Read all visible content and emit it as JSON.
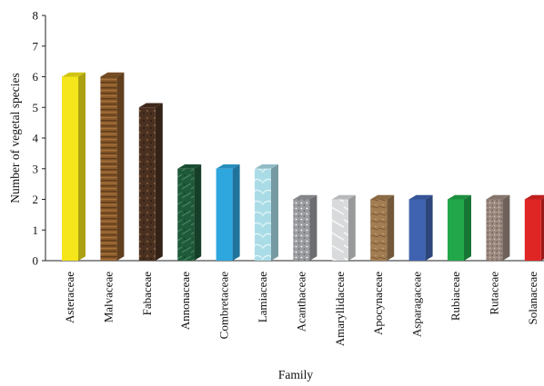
{
  "chart_data": {
    "type": "bar",
    "xlabel": "Family",
    "ylabel": "Number of vegetal species",
    "ylim": [
      0,
      8
    ],
    "yticks": [
      0,
      1,
      2,
      3,
      4,
      5,
      6,
      7,
      8
    ],
    "grid": false,
    "categories": [
      "Asteraceae",
      "Malvaceae",
      "Fabaceae",
      "Annonaceae",
      "Combretaceae",
      "Lamiaceae",
      "Acanthaceae",
      "Amaryllidaceae",
      "Apocynaceae",
      "Asparagaceae",
      "Rubiaceae",
      "Rutaceae",
      "Solanaceae"
    ],
    "values": [
      6,
      6,
      5,
      3,
      3,
      3,
      2,
      2,
      2,
      2,
      2,
      2,
      2
    ],
    "bar_colors": [
      "#f4e61a",
      "#8a5a2b",
      "#4a3020",
      "#1f5a3a",
      "#2ea6de",
      "#a9dce6",
      "#9a9ca0",
      "#d8dadc",
      "#a37d52",
      "#3f63b0",
      "#22a84a",
      "#9c8a80",
      "#e02525"
    ]
  }
}
